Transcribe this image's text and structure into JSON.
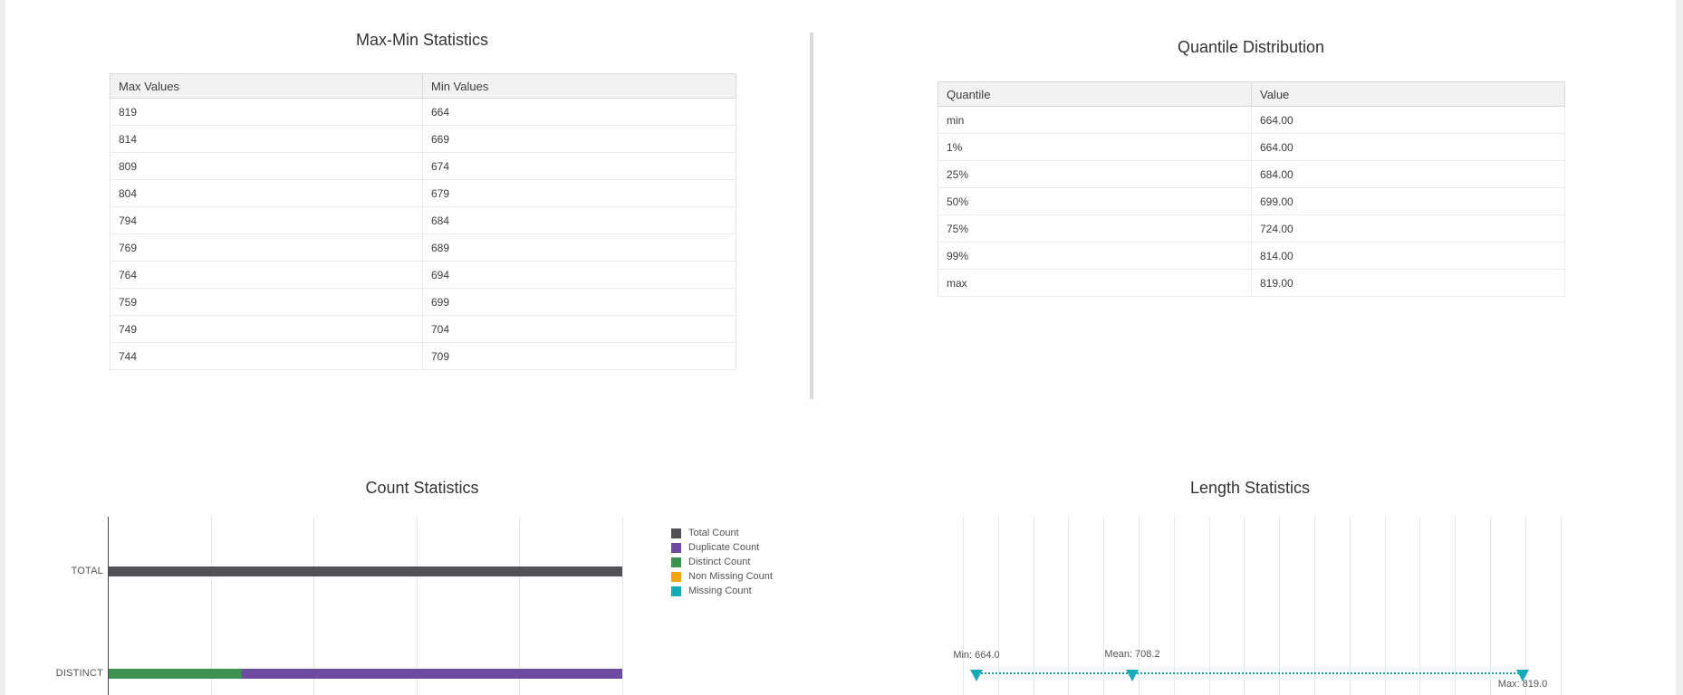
{
  "page": {
    "background": "#eef0f0",
    "surface": "#ffffff",
    "accent_teal": "#16a9b8"
  },
  "max_min": {
    "title": "Max-Min Statistics",
    "columns": [
      "Max Values",
      "Min Values"
    ],
    "rows": [
      [
        "819",
        "664"
      ],
      [
        "814",
        "669"
      ],
      [
        "809",
        "674"
      ],
      [
        "804",
        "679"
      ],
      [
        "794",
        "684"
      ],
      [
        "769",
        "689"
      ],
      [
        "764",
        "694"
      ],
      [
        "759",
        "699"
      ],
      [
        "749",
        "704"
      ],
      [
        "744",
        "709"
      ]
    ]
  },
  "quantile": {
    "title": "Quantile Distribution",
    "columns": [
      "Quantile",
      "Value"
    ],
    "rows": [
      [
        "min",
        "664.00"
      ],
      [
        "1%",
        "664.00"
      ],
      [
        "25%",
        "684.00"
      ],
      [
        "50%",
        "699.00"
      ],
      [
        "75%",
        "724.00"
      ],
      [
        "99%",
        "814.00"
      ],
      [
        "max",
        "819.00"
      ]
    ]
  },
  "count_chart": {
    "title": "Count Statistics",
    "row_labels": [
      "TOTAL",
      "DISTINCT"
    ],
    "legend": [
      {
        "label": "Total Count",
        "color": "#515156"
      },
      {
        "label": "Duplicate Count",
        "color": "#6c4ba0"
      },
      {
        "label": "Distinct Count",
        "color": "#3d9150"
      },
      {
        "label": "Non Missing Count",
        "color": "#f2a60d"
      },
      {
        "label": "Missing Count",
        "color": "#16a9b8"
      }
    ]
  },
  "length_chart": {
    "title": "Length Statistics",
    "labels": {
      "min": "Min: 664.0",
      "mean": "Mean: 708.2",
      "max": "Max: 819.0"
    }
  },
  "chart_data": [
    {
      "type": "table",
      "title": "Max-Min Statistics",
      "columns": [
        "Max Values",
        "Min Values"
      ],
      "rows": [
        [
          819,
          664
        ],
        [
          814,
          669
        ],
        [
          809,
          674
        ],
        [
          804,
          679
        ],
        [
          794,
          684
        ],
        [
          769,
          689
        ],
        [
          764,
          694
        ],
        [
          759,
          699
        ],
        [
          749,
          704
        ],
        [
          744,
          709
        ]
      ]
    },
    {
      "type": "table",
      "title": "Quantile Distribution",
      "columns": [
        "Quantile",
        "Value"
      ],
      "rows": [
        [
          "min",
          664.0
        ],
        [
          "1%",
          664.0
        ],
        [
          "25%",
          684.0
        ],
        [
          "50%",
          699.0
        ],
        [
          "75%",
          724.0
        ],
        [
          "99%",
          814.0
        ],
        [
          "max",
          819.0
        ]
      ]
    },
    {
      "type": "bar",
      "title": "Count Statistics",
      "orientation": "horizontal",
      "stacked": true,
      "grid": true,
      "legend_position": "right",
      "categories": [
        "TOTAL",
        "DISTINCT"
      ],
      "series": [
        {
          "name": "Total Count",
          "color": "#515156",
          "values_fraction_of_axis": [
            1.0,
            0
          ]
        },
        {
          "name": "Distinct Count",
          "color": "#3d9150",
          "values_fraction_of_axis": [
            0,
            0.26
          ]
        },
        {
          "name": "Duplicate Count",
          "color": "#6c4ba0",
          "values_fraction_of_axis": [
            0,
            0.74
          ]
        },
        {
          "name": "Non Missing Count",
          "color": "#f2a60d",
          "values_fraction_of_axis": [
            0,
            0
          ]
        },
        {
          "name": "Missing Count",
          "color": "#16a9b8",
          "values_fraction_of_axis": [
            0,
            0
          ]
        }
      ],
      "value_axis_labels": "not visible in screenshot",
      "note": "DISTINCT row is a stacked bar: Distinct Count (green) + Duplicate Count (purple) = Total width; further category rows are cut off at the bottom edge of the screenshot"
    },
    {
      "type": "scatter",
      "title": "Length Statistics",
      "marker": "triangle-down",
      "color": "#16a9b8",
      "connector": "dotted-line",
      "grid": true,
      "points": [
        {
          "label": "Min",
          "value": 664.0
        },
        {
          "label": "Mean",
          "value": 708.2
        },
        {
          "label": "Max",
          "value": 819.0
        }
      ]
    }
  ]
}
